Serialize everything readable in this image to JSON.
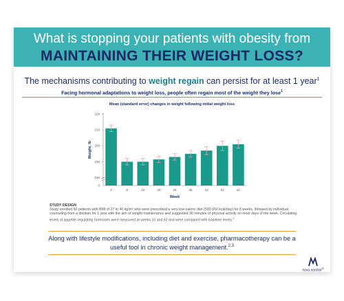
{
  "header": {
    "line1": "What is stopping your patients with obesity from",
    "line2": "MAINTAINING THEIR WEIGHT LOSS?"
  },
  "subtitle": {
    "before": "The mechanisms contributing to ",
    "emphasis": "weight regain",
    "after": " can persist for at least 1 year",
    "ref": "1"
  },
  "lead": {
    "text": "Facing hormonal adaptations to weight loss, people often regain most of the weight they lose",
    "ref": "1"
  },
  "chart_data": {
    "type": "bar",
    "title": "Mean (standard error) changes in weight following initial weight loss",
    "x_label": "Week",
    "y_label": "Weight, lb",
    "categories": [
      "0",
      "8",
      "10",
      "20",
      "26",
      "36",
      "44",
      "52",
      "62"
    ],
    "values": [
      211,
      190,
      190,
      191.5,
      193,
      195,
      197,
      200,
      201
    ],
    "errors": [
      2,
      2,
      2,
      2,
      2,
      2,
      2.5,
      3,
      2.5
    ],
    "color": "#1a9a8a",
    "error_color": "#eaa0b4",
    "ylim": [
      175,
      220
    ],
    "yticks": [
      220,
      210,
      200,
      190,
      180
    ],
    "ybreak_label": 0,
    "grid": false
  },
  "study": {
    "heading": "STUDY DESIGN",
    "text": "Study enrolled 50 patients with BMI of 27 to 40 kg/m² who were prescribed a very-low-caloric diet (500-550 kcal/day) for 8 weeks, followed by individual counseling from a dietitian for 1 year with the aim of weight maintenance and suggested 30 minutes of physical activity on most days of the week. Circulating levels of appetite-regulating hormones were measured at weeks 10 and 62 and were compared with baseline levels.",
    "ref": "1"
  },
  "callout": {
    "text": "Along with lifestyle modifications, including diet and exercise, pharmacotherapy can be a useful tool in chronic weight management.",
    "ref": "2,3"
  },
  "logo": {
    "text": "novo nordisk",
    "mark": "®"
  }
}
